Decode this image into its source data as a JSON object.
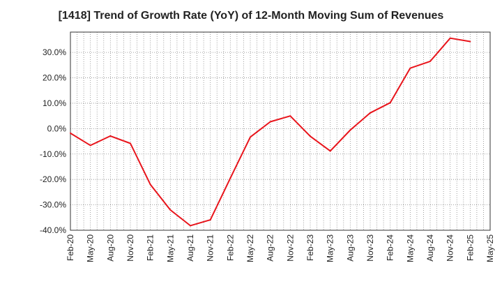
{
  "chart_data": {
    "type": "line",
    "title": "[1418]  Trend of Growth Rate (YoY) of 12-Month Moving Sum of Revenues",
    "xlabel": "",
    "ylabel": "",
    "ylim": [
      -40,
      38
    ],
    "yticks": [
      30,
      20,
      10,
      0,
      -10,
      -20,
      -30,
      -40
    ],
    "ytick_labels": [
      "30.0%",
      "20.0%",
      "10.0%",
      "0.0%",
      "-10.0%",
      "-20.0%",
      "-30.0%",
      "-40.0%"
    ],
    "x_tick_labels": [
      "Feb-20",
      "May-20",
      "Aug-20",
      "Nov-20",
      "Feb-21",
      "May-21",
      "Aug-21",
      "Nov-21",
      "Feb-22",
      "May-22",
      "Aug-22",
      "Nov-22",
      "Feb-23",
      "May-23",
      "Aug-23",
      "Nov-23",
      "Feb-24",
      "May-24",
      "Aug-24",
      "Nov-24",
      "Feb-25",
      "May-25"
    ],
    "grid": true,
    "line_color": "#e8141b",
    "series": [
      {
        "x": [
          "Feb-20",
          "May-20",
          "Aug-20",
          "Nov-20",
          "Feb-21",
          "May-21",
          "Aug-21",
          "Nov-21",
          "Feb-22",
          "May-22",
          "Aug-22",
          "Nov-22",
          "Feb-23",
          "May-23",
          "Aug-23",
          "Nov-23",
          "Feb-24",
          "May-24",
          "Aug-24",
          "Nov-24",
          "Feb-25"
        ],
        "values": [
          -1.8,
          -6.6,
          -2.9,
          -5.8,
          -22.0,
          -32.0,
          -38.2,
          -35.9,
          -19.5,
          -3.3,
          2.7,
          5.0,
          -3.0,
          -8.8,
          -0.6,
          6.2,
          10.2,
          23.8,
          26.5,
          35.6,
          34.3
        ]
      }
    ]
  }
}
